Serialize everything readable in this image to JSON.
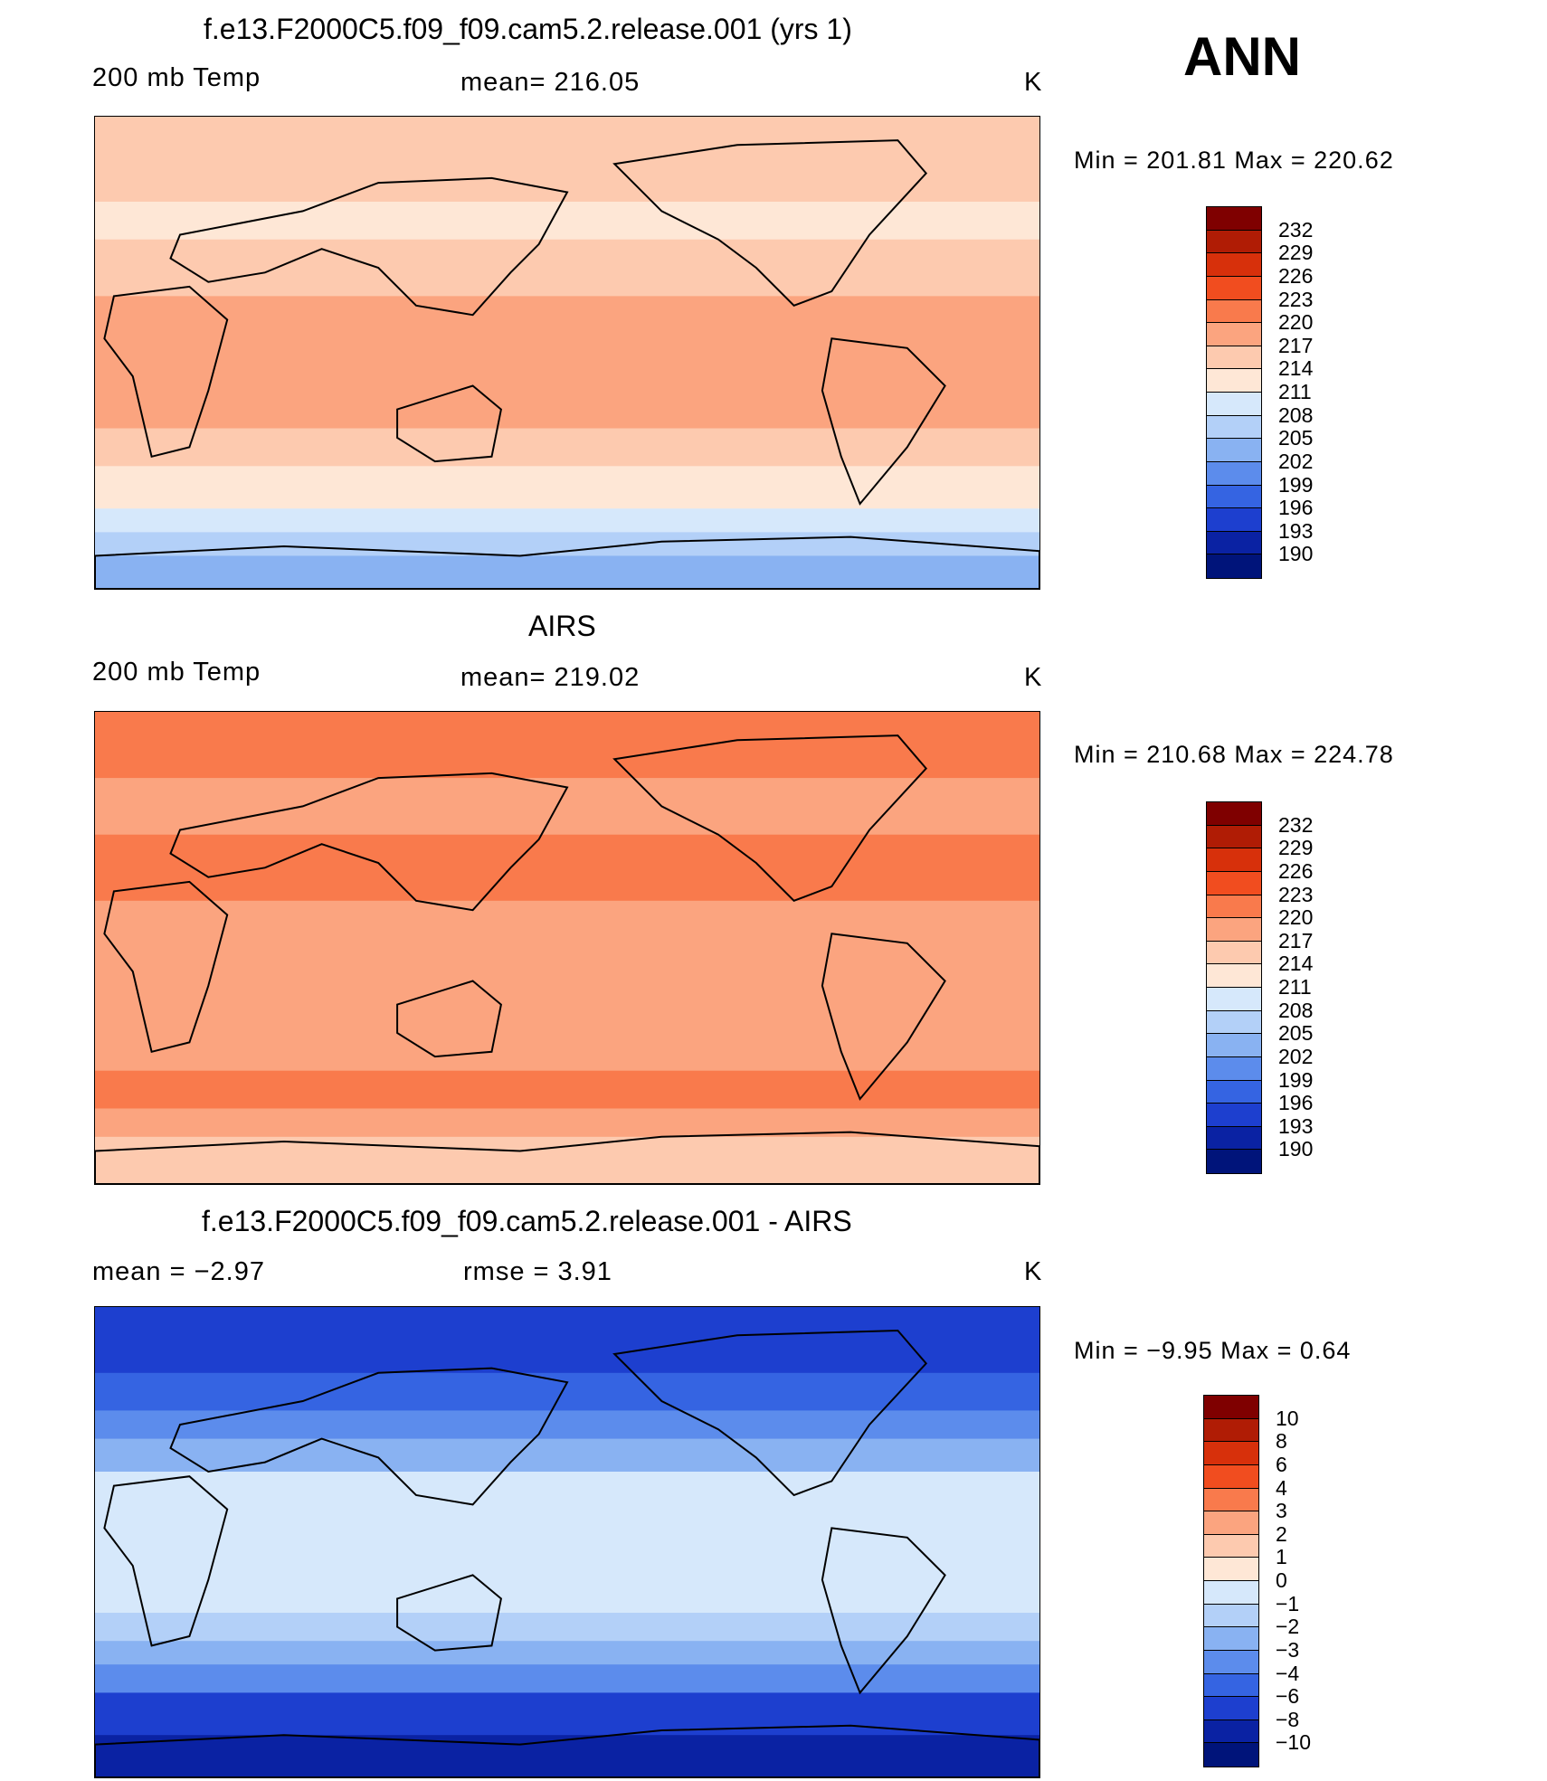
{
  "season_label": "ANN",
  "panels": [
    {
      "title": "f.e13.F2000C5.f09_f09.cam5.2.release.001 (yrs 1)",
      "left_label": "200 mb Temp",
      "center_label": "mean= 216.05",
      "units": "K",
      "minmax": "Min  =  201.81  Max  =  220.62",
      "colorbar": [
        "232",
        "229",
        "226",
        "223",
        "220",
        "217",
        "214",
        "211",
        "208",
        "205",
        "202",
        "199",
        "196",
        "193",
        "190"
      ],
      "colors": [
        "#7f0000",
        "#b01c05",
        "#d7300b",
        "#f14d1f",
        "#f97a4c",
        "#fba47f",
        "#fdcaaf",
        "#fee7d6",
        "#d6e8fb",
        "#b3d0f8",
        "#89b2f2",
        "#5c8cec",
        "#3564e2",
        "#1d3fcf",
        "#0a22a3",
        "#00147a"
      ],
      "bands": [
        {
          "y": 0,
          "h": 0.18,
          "c": "#fdcaaf"
        },
        {
          "y": 0.18,
          "h": 0.08,
          "c": "#fee7d6"
        },
        {
          "y": 0.26,
          "h": 0.12,
          "c": "#fdcaaf"
        },
        {
          "y": 0.38,
          "h": 0.28,
          "c": "#fba47f"
        },
        {
          "y": 0.66,
          "h": 0.08,
          "c": "#fdcaaf"
        },
        {
          "y": 0.74,
          "h": 0.09,
          "c": "#fee7d6"
        },
        {
          "y": 0.83,
          "h": 0.05,
          "c": "#d6e8fb"
        },
        {
          "y": 0.88,
          "h": 0.05,
          "c": "#b3d0f8"
        },
        {
          "y": 0.93,
          "h": 0.07,
          "c": "#89b2f2"
        }
      ]
    },
    {
      "title": "AIRS",
      "left_label": "200 mb Temp",
      "center_label": "mean= 219.02",
      "units": "K",
      "minmax": "Min  =  210.68  Max  =  224.78",
      "colorbar": [
        "232",
        "229",
        "226",
        "223",
        "220",
        "217",
        "214",
        "211",
        "208",
        "205",
        "202",
        "199",
        "196",
        "193",
        "190"
      ],
      "colors": [
        "#7f0000",
        "#b01c05",
        "#d7300b",
        "#f14d1f",
        "#f97a4c",
        "#fba47f",
        "#fdcaaf",
        "#fee7d6",
        "#d6e8fb",
        "#b3d0f8",
        "#89b2f2",
        "#5c8cec",
        "#3564e2",
        "#1d3fcf",
        "#0a22a3",
        "#00147a"
      ],
      "bands": [
        {
          "y": 0,
          "h": 0.14,
          "c": "#f97a4c"
        },
        {
          "y": 0.14,
          "h": 0.12,
          "c": "#fba47f"
        },
        {
          "y": 0.26,
          "h": 0.14,
          "c": "#f97a4c"
        },
        {
          "y": 0.4,
          "h": 0.36,
          "c": "#fba47f"
        },
        {
          "y": 0.76,
          "h": 0.08,
          "c": "#f97a4c"
        },
        {
          "y": 0.84,
          "h": 0.06,
          "c": "#fba47f"
        },
        {
          "y": 0.9,
          "h": 0.1,
          "c": "#fdcaaf"
        }
      ]
    },
    {
      "title": "f.e13.F2000C5.f09_f09.cam5.2.release.001 - AIRS",
      "left_label": "mean  =    −2.97",
      "center_label": "rmse  =     3.91",
      "units": "K",
      "minmax": "Min  =    −9.95  Max  =     0.64",
      "colorbar": [
        "10",
        "8",
        "6",
        "4",
        "3",
        "2",
        "1",
        "0",
        "−1",
        "−2",
        "−3",
        "−4",
        "−6",
        "−8",
        "−10"
      ],
      "colors": [
        "#7f0000",
        "#b01c05",
        "#d7300b",
        "#f14d1f",
        "#f97a4c",
        "#fba47f",
        "#fdcaaf",
        "#fee7d6",
        "#d6e8fb",
        "#b3d0f8",
        "#89b2f2",
        "#5c8cec",
        "#3564e2",
        "#1d3fcf",
        "#0a22a3",
        "#00147a"
      ],
      "bands": [
        {
          "y": 0,
          "h": 0.14,
          "c": "#1d3fcf"
        },
        {
          "y": 0.14,
          "h": 0.08,
          "c": "#3564e2"
        },
        {
          "y": 0.22,
          "h": 0.06,
          "c": "#5c8cec"
        },
        {
          "y": 0.28,
          "h": 0.07,
          "c": "#89b2f2"
        },
        {
          "y": 0.35,
          "h": 0.3,
          "c": "#d6e8fb"
        },
        {
          "y": 0.65,
          "h": 0.06,
          "c": "#b3d0f8"
        },
        {
          "y": 0.71,
          "h": 0.05,
          "c": "#89b2f2"
        },
        {
          "y": 0.76,
          "h": 0.06,
          "c": "#5c8cec"
        },
        {
          "y": 0.82,
          "h": 0.09,
          "c": "#1d3fcf"
        },
        {
          "y": 0.91,
          "h": 0.09,
          "c": "#0a22a3"
        }
      ]
    }
  ]
}
